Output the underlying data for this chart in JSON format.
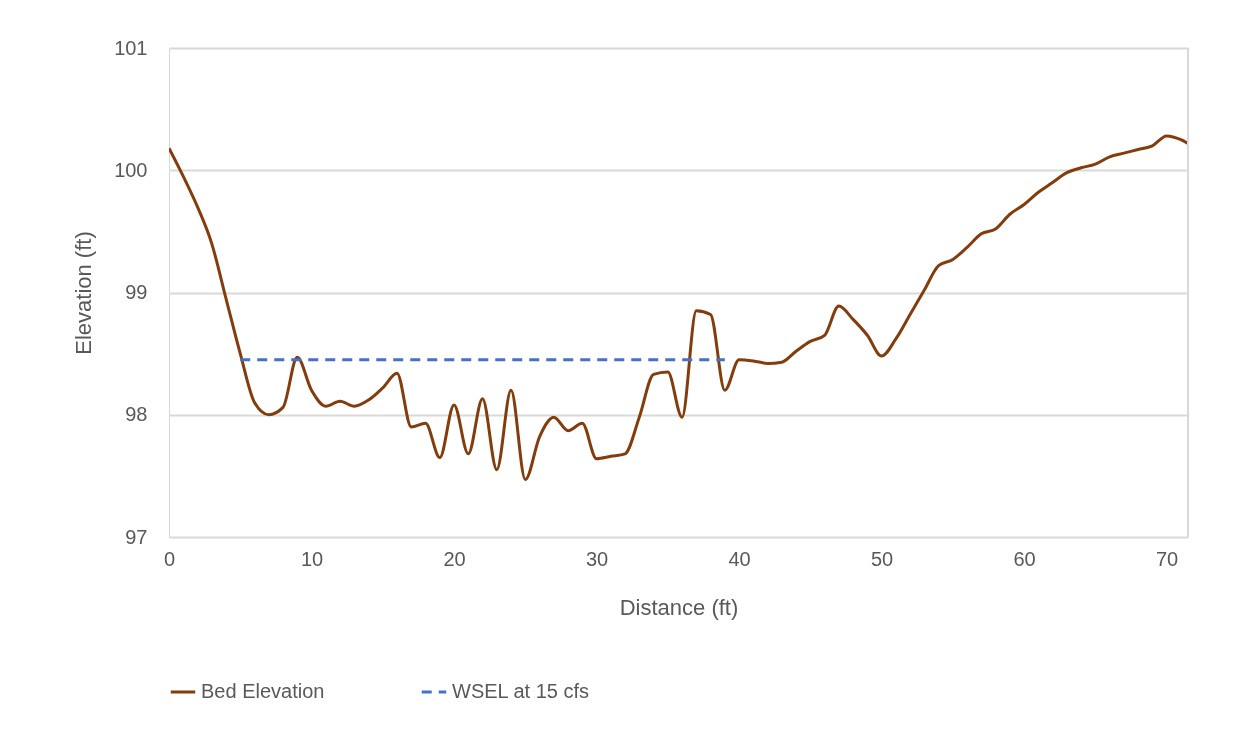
{
  "chart_data": {
    "type": "line",
    "xlabel": "Distance (ft)",
    "ylabel": "Elevation (ft)",
    "xlim": [
      0,
      71.5
    ],
    "xticks": [
      0,
      10,
      20,
      30,
      40,
      50,
      60,
      70
    ],
    "ylim": [
      97,
      101
    ],
    "yticks": [
      97,
      98,
      99,
      100,
      101
    ],
    "grid": "y",
    "legend": "bottom",
    "marker": "none",
    "series": [
      {
        "name": "Bed Elevation",
        "color": "#843c0c",
        "line_style": "solid",
        "x": [
          0,
          1,
          2,
          3,
          4,
          5,
          6,
          7,
          8,
          9,
          10,
          11,
          12,
          13,
          14,
          15,
          16,
          17,
          18,
          19,
          20,
          21,
          22,
          23,
          24,
          25,
          26,
          27,
          28,
          29,
          30,
          31,
          32,
          33,
          34,
          35,
          36,
          37,
          38,
          39,
          40,
          41,
          42,
          43,
          44,
          45,
          46,
          47,
          48,
          49,
          50,
          51,
          52,
          53,
          54,
          55,
          56,
          57,
          58,
          59,
          60,
          61,
          62,
          63,
          64,
          65,
          66,
          67,
          68,
          69,
          70,
          71,
          71.5
        ],
        "values": [
          100.18,
          99.95,
          99.7,
          99.4,
          98.95,
          98.5,
          98.1,
          98.0,
          98.06,
          98.47,
          98.2,
          98.07,
          98.11,
          98.07,
          98.12,
          98.22,
          98.34,
          97.9,
          97.93,
          97.65,
          98.08,
          97.68,
          98.13,
          97.55,
          98.2,
          97.47,
          97.82,
          97.98,
          97.87,
          97.93,
          97.64,
          97.66,
          97.68,
          97.98,
          98.33,
          98.35,
          97.98,
          98.85,
          98.82,
          98.2,
          98.45,
          98.44,
          98.42,
          98.43,
          98.52,
          98.6,
          98.65,
          98.89,
          98.78,
          98.65,
          98.48,
          98.62,
          98.82,
          99.02,
          99.22,
          99.27,
          99.37,
          99.48,
          99.52,
          99.64,
          99.72,
          99.82,
          99.9,
          99.98,
          100.02,
          100.05,
          100.11,
          100.14,
          100.17,
          100.2,
          100.28,
          100.25,
          100.22
        ]
      },
      {
        "name": "WSEL at 15 cfs",
        "color": "#4472c4",
        "line_style": "dashed",
        "x": [
          5,
          39
        ],
        "values": [
          98.45,
          98.45
        ]
      }
    ]
  }
}
